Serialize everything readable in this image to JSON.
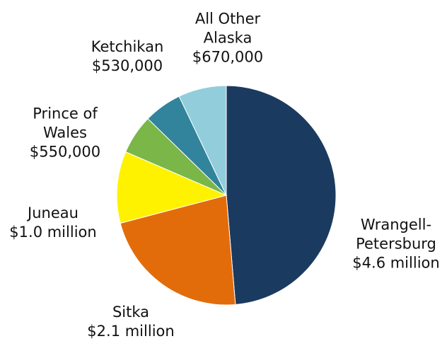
{
  "chart_data": {
    "type": "pie",
    "categories": [
      "Wrangell-Petersburg",
      "Sitka",
      "Juneau",
      "Prince of Wales",
      "Ketchikan",
      "All Other Alaska"
    ],
    "values": [
      4600000,
      2100000,
      1000000,
      550000,
      530000,
      670000
    ],
    "value_labels": [
      "$4.6 million",
      "$2.1 million",
      "$1.0 million",
      "$550,000",
      "$530,000",
      "$670,000"
    ],
    "colors": [
      "#1b3a5f",
      "#e36c0a",
      "#fff200",
      "#7ab648",
      "#31849b",
      "#92cddc"
    ]
  }
}
